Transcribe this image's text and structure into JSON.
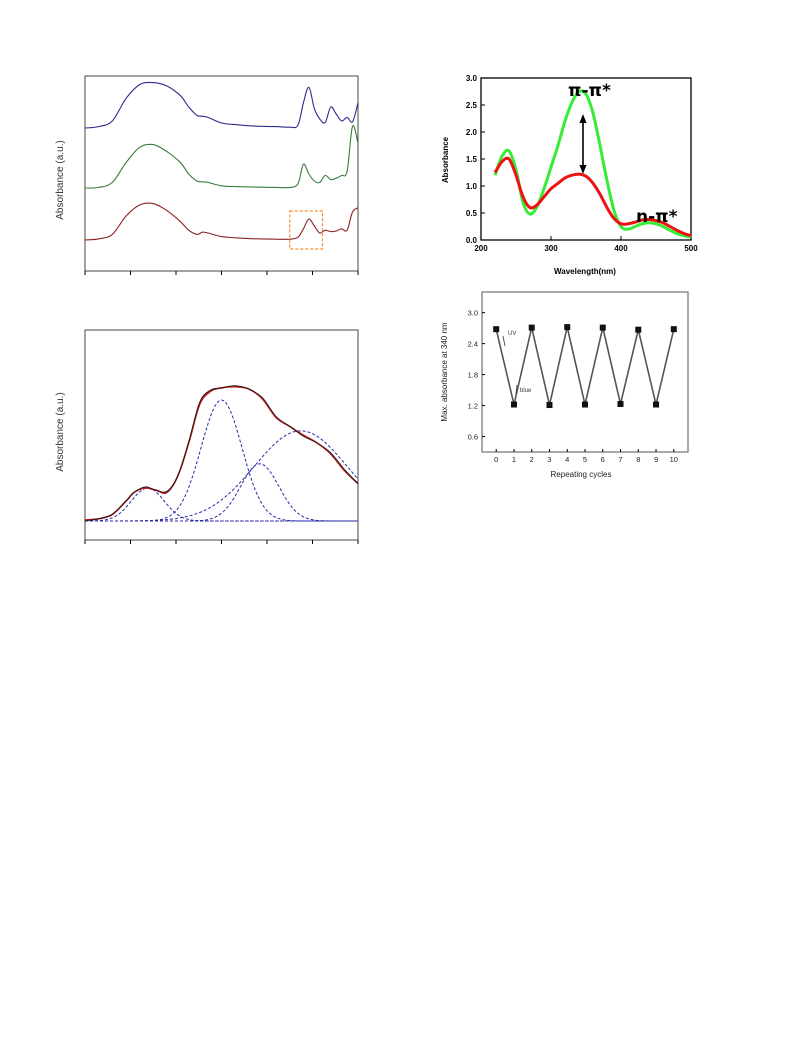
{
  "chart_data": [
    {
      "type": "line",
      "ylabel": "Absorbance (a.u.)",
      "series": [
        {
          "color": "#2b2b8f",
          "points": [
            [
              0,
              0.8
            ],
            [
              0.05,
              0.85
            ],
            [
              0.1,
              1.05
            ],
            [
              0.15,
              1.85
            ],
            [
              0.2,
              2.35
            ],
            [
              0.25,
              2.42
            ],
            [
              0.3,
              2.3
            ],
            [
              0.35,
              1.95
            ],
            [
              0.38,
              1.55
            ],
            [
              0.41,
              1.25
            ],
            [
              0.43,
              1.22
            ],
            [
              0.45,
              1.18
            ],
            [
              0.5,
              0.98
            ],
            [
              0.55,
              0.92
            ],
            [
              0.6,
              0.88
            ],
            [
              0.65,
              0.86
            ],
            [
              0.7,
              0.85
            ],
            [
              0.75,
              0.83
            ],
            [
              0.78,
              0.9
            ],
            [
              0.8,
              1.7
            ],
            [
              0.82,
              2.25
            ],
            [
              0.84,
              1.5
            ],
            [
              0.86,
              1.12
            ],
            [
              0.88,
              1.0
            ],
            [
              0.9,
              1.55
            ],
            [
              0.92,
              1.3
            ],
            [
              0.94,
              1.05
            ],
            [
              0.96,
              1.18
            ],
            [
              0.98,
              1.02
            ],
            [
              1.0,
              1.7
            ]
          ]
        },
        {
          "color": "#3a7a3a",
          "points": [
            [
              0,
              0.8
            ],
            [
              0.05,
              0.82
            ],
            [
              0.1,
              1.0
            ],
            [
              0.15,
              1.7
            ],
            [
              0.2,
              2.25
            ],
            [
              0.25,
              2.35
            ],
            [
              0.3,
              2.1
            ],
            [
              0.35,
              1.7
            ],
            [
              0.38,
              1.3
            ],
            [
              0.41,
              1.05
            ],
            [
              0.43,
              1.02
            ],
            [
              0.45,
              1.0
            ],
            [
              0.5,
              0.88
            ],
            [
              0.55,
              0.85
            ],
            [
              0.6,
              0.84
            ],
            [
              0.65,
              0.83
            ],
            [
              0.7,
              0.82
            ],
            [
              0.75,
              0.82
            ],
            [
              0.78,
              0.95
            ],
            [
              0.8,
              1.65
            ],
            [
              0.82,
              1.3
            ],
            [
              0.84,
              1.05
            ],
            [
              0.86,
              1.0
            ],
            [
              0.88,
              1.25
            ],
            [
              0.9,
              1.1
            ],
            [
              0.92,
              1.15
            ],
            [
              0.94,
              1.25
            ],
            [
              0.96,
              1.4
            ],
            [
              0.98,
              3.0
            ],
            [
              1.0,
              2.4
            ]
          ]
        },
        {
          "color": "#8b2020",
          "points": [
            [
              0,
              0.8
            ],
            [
              0.05,
              0.84
            ],
            [
              0.1,
              1.0
            ],
            [
              0.15,
              1.65
            ],
            [
              0.2,
              2.05
            ],
            [
              0.25,
              2.1
            ],
            [
              0.3,
              1.85
            ],
            [
              0.35,
              1.45
            ],
            [
              0.38,
              1.15
            ],
            [
              0.41,
              1.0
            ],
            [
              0.43,
              1.08
            ],
            [
              0.45,
              1.05
            ],
            [
              0.5,
              0.92
            ],
            [
              0.55,
              0.88
            ],
            [
              0.6,
              0.85
            ],
            [
              0.65,
              0.84
            ],
            [
              0.7,
              0.83
            ],
            [
              0.75,
              0.83
            ],
            [
              0.78,
              0.9
            ],
            [
              0.8,
              1.2
            ],
            [
              0.82,
              1.55
            ],
            [
              0.84,
              1.3
            ],
            [
              0.86,
              1.05
            ],
            [
              0.88,
              1.15
            ],
            [
              0.9,
              1.1
            ],
            [
              0.92,
              1.12
            ],
            [
              0.94,
              1.2
            ],
            [
              0.96,
              1.15
            ],
            [
              0.98,
              1.8
            ],
            [
              1.0,
              1.95
            ]
          ]
        }
      ],
      "highlight_box": {
        "x": [
          0.75,
          0.87
        ],
        "color": "#ff8c2a"
      }
    },
    {
      "type": "line",
      "xlabel": "Wavelength(nm)",
      "ylabel": "Absorbance",
      "xlim": [
        200,
        500
      ],
      "ylim": [
        0.0,
        3.0
      ],
      "xticks": [
        "200",
        "300",
        "400",
        "500"
      ],
      "yticks": [
        "0.0",
        "0.5",
        "1.0",
        "1.5",
        "2.0",
        "2.5",
        "3.0"
      ],
      "series": [
        {
          "color": "#33ee33",
          "x": [
            220,
            230,
            240,
            250,
            260,
            270,
            280,
            290,
            300,
            310,
            320,
            330,
            340,
            350,
            360,
            370,
            380,
            390,
            400,
            410,
            420,
            430,
            440,
            450,
            460,
            470,
            480,
            490,
            500
          ],
          "y": [
            1.2,
            1.55,
            1.65,
            1.3,
            0.7,
            0.48,
            0.62,
            0.95,
            1.35,
            1.75,
            2.2,
            2.55,
            2.75,
            2.7,
            2.35,
            1.75,
            1.1,
            0.55,
            0.25,
            0.2,
            0.25,
            0.3,
            0.32,
            0.3,
            0.25,
            0.18,
            0.12,
            0.08,
            0.05
          ]
        },
        {
          "color": "#ee1111",
          "x": [
            220,
            230,
            240,
            250,
            260,
            270,
            280,
            290,
            300,
            310,
            320,
            330,
            340,
            350,
            360,
            370,
            380,
            390,
            400,
            410,
            420,
            430,
            440,
            450,
            460,
            470,
            480,
            490,
            500
          ],
          "y": [
            1.25,
            1.45,
            1.5,
            1.2,
            0.8,
            0.6,
            0.65,
            0.8,
            0.95,
            1.05,
            1.15,
            1.2,
            1.22,
            1.18,
            1.05,
            0.85,
            0.6,
            0.4,
            0.3,
            0.3,
            0.33,
            0.37,
            0.38,
            0.36,
            0.32,
            0.25,
            0.18,
            0.12,
            0.08
          ]
        }
      ],
      "annotations": [
        "π-π*",
        "n-π*"
      ]
    },
    {
      "type": "line",
      "ylabel": "Absorbance (a.u.)",
      "series": [
        {
          "color": "#c01818",
          "points": [
            [
              0,
              0.05
            ],
            [
              0.05,
              0.06
            ],
            [
              0.1,
              0.1
            ],
            [
              0.15,
              0.22
            ],
            [
              0.18,
              0.3
            ],
            [
              0.22,
              0.34
            ],
            [
              0.26,
              0.32
            ],
            [
              0.3,
              0.3
            ],
            [
              0.34,
              0.45
            ],
            [
              0.38,
              0.75
            ],
            [
              0.42,
              1.1
            ],
            [
              0.46,
              1.22
            ],
            [
              0.5,
              1.25
            ],
            [
              0.55,
              1.26
            ],
            [
              0.6,
              1.24
            ],
            [
              0.65,
              1.15
            ],
            [
              0.7,
              0.98
            ],
            [
              0.75,
              0.9
            ],
            [
              0.8,
              0.82
            ],
            [
              0.85,
              0.75
            ],
            [
              0.9,
              0.65
            ],
            [
              0.95,
              0.5
            ],
            [
              1.0,
              0.38
            ]
          ]
        },
        {
          "color": "#1a1a1a",
          "points": [
            [
              0,
              0.04
            ],
            [
              0.05,
              0.06
            ],
            [
              0.1,
              0.1
            ],
            [
              0.15,
              0.22
            ],
            [
              0.18,
              0.3
            ],
            [
              0.22,
              0.35
            ],
            [
              0.26,
              0.32
            ],
            [
              0.3,
              0.31
            ],
            [
              0.34,
              0.45
            ],
            [
              0.38,
              0.76
            ],
            [
              0.42,
              1.12
            ],
            [
              0.46,
              1.23
            ],
            [
              0.5,
              1.25
            ],
            [
              0.55,
              1.27
            ],
            [
              0.6,
              1.24
            ],
            [
              0.65,
              1.16
            ],
            [
              0.7,
              0.99
            ],
            [
              0.75,
              0.9
            ],
            [
              0.8,
              0.81
            ],
            [
              0.85,
              0.75
            ],
            [
              0.9,
              0.66
            ],
            [
              0.95,
              0.51
            ],
            [
              1.0,
              0.38
            ]
          ]
        }
      ],
      "fit_components": [
        {
          "color": "#2a2aa8",
          "center": 0.23,
          "width": 0.06,
          "height": 0.3
        },
        {
          "color": "#2a2aa8",
          "center": 0.5,
          "width": 0.075,
          "height": 1.1
        },
        {
          "color": "#2a2aa8",
          "center": 0.64,
          "width": 0.07,
          "height": 0.52
        },
        {
          "color": "#2a2aa8",
          "center": 0.79,
          "width": 0.17,
          "height": 0.82
        }
      ],
      "baseline_color": "#2a2aa8"
    },
    {
      "type": "line",
      "xlabel": "Repeating cycles",
      "ylabel": "Max. absorbance at 340 nm",
      "xlim": [
        -0.8,
        10.8
      ],
      "ylim": [
        0.3,
        3.4
      ],
      "xticks": [
        "0",
        "1",
        "2",
        "3",
        "4",
        "5",
        "6",
        "7",
        "8",
        "9",
        "10"
      ],
      "yticks": [
        "0.6",
        "1.2",
        "1.8",
        "2.4",
        "3.0"
      ],
      "x": [
        0,
        1,
        2,
        3,
        4,
        5,
        6,
        7,
        8,
        9,
        10
      ],
      "y": [
        2.68,
        1.22,
        2.71,
        1.21,
        2.72,
        1.22,
        2.71,
        1.23,
        2.67,
        1.22,
        2.68
      ],
      "line_color": "#555555",
      "marker_color": "#111111",
      "annotations": [
        "UV",
        "blue"
      ]
    }
  ]
}
